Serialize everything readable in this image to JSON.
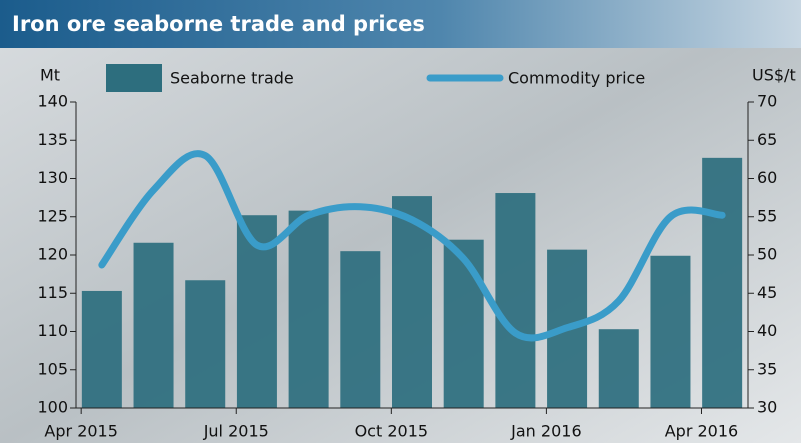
{
  "chart_data": {
    "type": "bar-line",
    "title": "Iron ore seaborne trade and prices",
    "y_label": "Mt",
    "y2_label": "US$/t",
    "categories": [
      "Apr 2015",
      null,
      null,
      "Jul 2015",
      null,
      null,
      "Oct 2015",
      null,
      null,
      "Jan 2016",
      null,
      null,
      "Apr 2016"
    ],
    "series": [
      {
        "name": "Seaborne trade",
        "type": "bar",
        "color": "#2d6e7e",
        "values": [
          115.3,
          121.6,
          116.7,
          125.2,
          125.8,
          120.5,
          127.7,
          122.0,
          128.1,
          120.7,
          110.3,
          119.9,
          132.7
        ]
      },
      {
        "name": "Commodity price",
        "type": "line",
        "axis": "y2",
        "color": "#3a9cc9",
        "values": [
          48.7,
          58.5,
          63.0,
          51.3,
          55.2,
          56.3,
          54.6,
          49.5,
          39.8,
          40.5,
          44.0,
          55.0,
          55.2
        ]
      }
    ],
    "ylim": [
      100,
      140
    ],
    "yticks": [
      100,
      105,
      110,
      115,
      120,
      125,
      130,
      135,
      140
    ],
    "y2lim": [
      30,
      70
    ],
    "y2ticks": [
      30,
      35,
      40,
      45,
      50,
      55,
      60,
      65,
      70
    ]
  }
}
